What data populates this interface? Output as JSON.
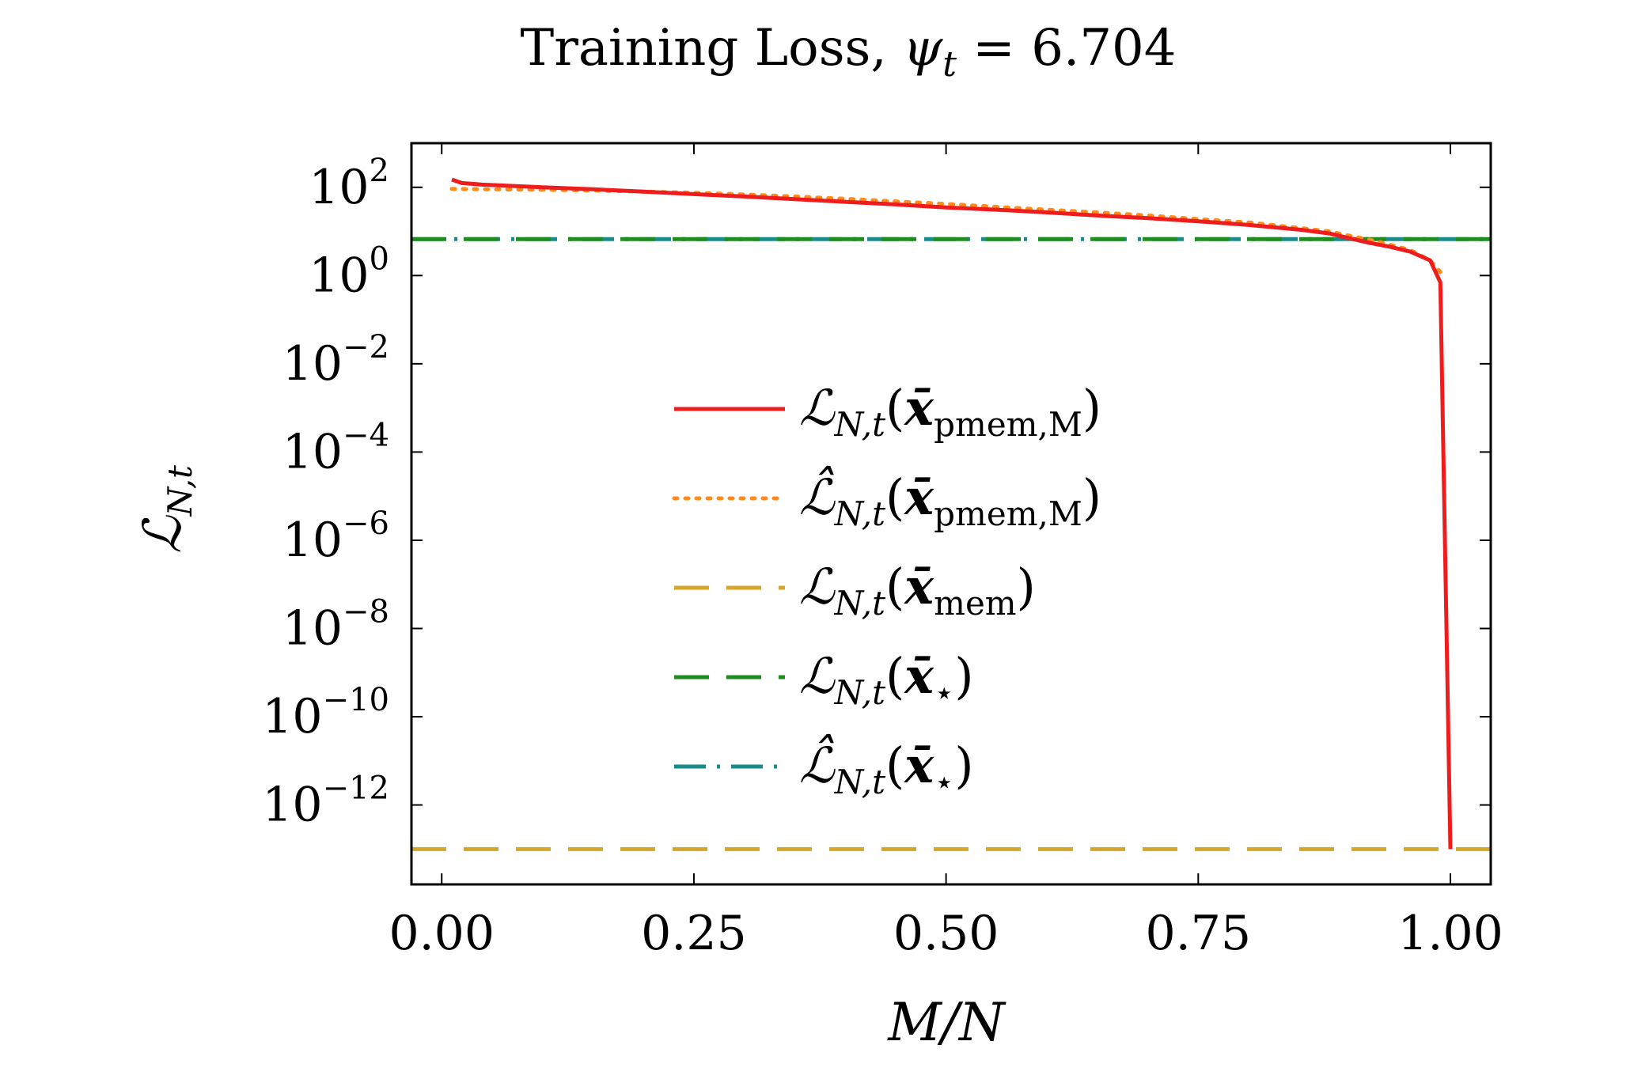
{
  "chart_data": {
    "type": "line",
    "title_prefix": "Training Loss, ",
    "title_symbol": "ψ",
    "title_subscript": "t",
    "title_value": " = 6.704",
    "xlabel": "M/N",
    "ylabel": "ℒ",
    "ylabel_subscript": "N,t",
    "xlim": [
      -0.03,
      1.04
    ],
    "ylim_log10": [
      -13.8,
      3
    ],
    "yscale": "log",
    "grid": false,
    "legend_position": "center",
    "x_ticks": [
      0.0,
      0.25,
      0.5,
      0.75,
      1.0
    ],
    "x_tick_labels": [
      "0.00",
      "0.25",
      "0.50",
      "0.75",
      "1.00"
    ],
    "y_tick_exponents": [
      2,
      0,
      -2,
      -4,
      -6,
      -8,
      -10,
      -12
    ],
    "y_tick_base": "10",
    "series": [
      {
        "name": "ℒN,t(x̄pmem,M)",
        "color": "#ee1c1c",
        "dash": "solid",
        "x": [
          0.01,
          0.02,
          0.04,
          0.06,
          0.1,
          0.15,
          0.2,
          0.25,
          0.3,
          0.35,
          0.4,
          0.45,
          0.5,
          0.55,
          0.6,
          0.65,
          0.7,
          0.75,
          0.8,
          0.85,
          0.88,
          0.9,
          0.92,
          0.94,
          0.96,
          0.98,
          0.99,
          1.0
        ],
        "y": [
          150,
          125,
          115,
          110,
          100,
          90,
          80,
          70,
          62,
          54,
          47,
          41,
          35,
          31,
          27,
          23,
          20,
          17,
          14,
          11,
          9,
          7,
          5.5,
          4.5,
          3.5,
          2.2,
          0.7,
          1e-13
        ]
      },
      {
        "name": "ℒ̂N,t(x̄pmem,M)",
        "color": "#ff8c1a",
        "dash": "dotted",
        "x": [
          0.01,
          0.05,
          0.1,
          0.15,
          0.2,
          0.25,
          0.3,
          0.35,
          0.4,
          0.45,
          0.5,
          0.55,
          0.6,
          0.65,
          0.7,
          0.75,
          0.8,
          0.85,
          0.88,
          0.9,
          0.92,
          0.94,
          0.96,
          0.98,
          0.99
        ],
        "y": [
          92,
          90,
          88,
          85,
          80,
          75,
          69,
          62,
          55,
          48,
          42,
          36,
          31,
          27,
          23,
          19,
          16,
          12,
          10,
          8,
          6.5,
          5,
          3.8,
          2.2,
          1.2
        ]
      },
      {
        "name": "ℒN,t(x̄mem)",
        "color": "#d4a62a",
        "dash": "dashed",
        "x": [
          -0.03,
          1.04
        ],
        "y": [
          1e-13,
          1e-13
        ]
      },
      {
        "name": "ℒN,t(x̄⋆)",
        "color": "#1e8c1e",
        "dash": "dashed",
        "x": [
          -0.03,
          1.04
        ],
        "y": [
          6.704,
          6.704
        ]
      },
      {
        "name": "ℒ̂N,t(x̄⋆)",
        "color": "#1a8a8a",
        "dash": "dashdot",
        "x": [
          -0.03,
          1.04
        ],
        "y": [
          6.704,
          6.704
        ]
      }
    ]
  },
  "legend": [
    {
      "hat": false,
      "sub_main": "pmem,M",
      "star": false,
      "color": "#ee1c1c",
      "dash": "solid"
    },
    {
      "hat": true,
      "sub_main": "pmem,M",
      "star": false,
      "color": "#ff8c1a",
      "dash": "dotted"
    },
    {
      "hat": false,
      "sub_main": "mem",
      "star": false,
      "color": "#d4a62a",
      "dash": "dashed"
    },
    {
      "hat": false,
      "sub_main": "",
      "star": true,
      "color": "#1e8c1e",
      "dash": "dashed"
    },
    {
      "hat": true,
      "sub_main": "",
      "star": true,
      "color": "#1a8a8a",
      "dash": "dashdot"
    }
  ],
  "legend_text": {
    "L": "ℒ",
    "sub": "N,t",
    "open": "(",
    "xbar": "x̄",
    "close": ")",
    "star": "⋆"
  }
}
